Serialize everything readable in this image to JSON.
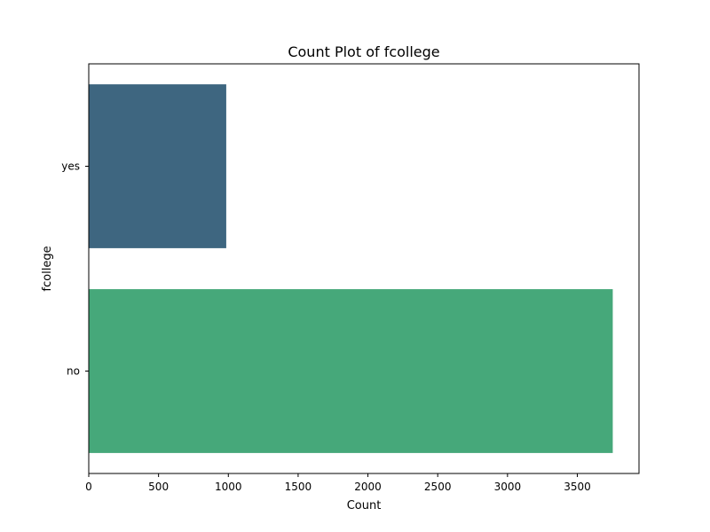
{
  "chart_data": {
    "type": "bar",
    "orientation": "horizontal",
    "title": "Count Plot of fcollege",
    "xlabel": "Count",
    "ylabel": "fcollege",
    "categories": [
      "yes",
      "no"
    ],
    "values": [
      985,
      3754
    ],
    "colors": [
      "#3e6680",
      "#46a87a"
    ],
    "xlim": [
      0,
      3942
    ],
    "xticks": [
      0,
      500,
      1000,
      1500,
      2000,
      2500,
      3000,
      3500
    ],
    "xtick_labels": [
      "0",
      "500",
      "1000",
      "1500",
      "2000",
      "2500",
      "3000",
      "3500"
    ],
    "grid": false,
    "legend": "none"
  }
}
